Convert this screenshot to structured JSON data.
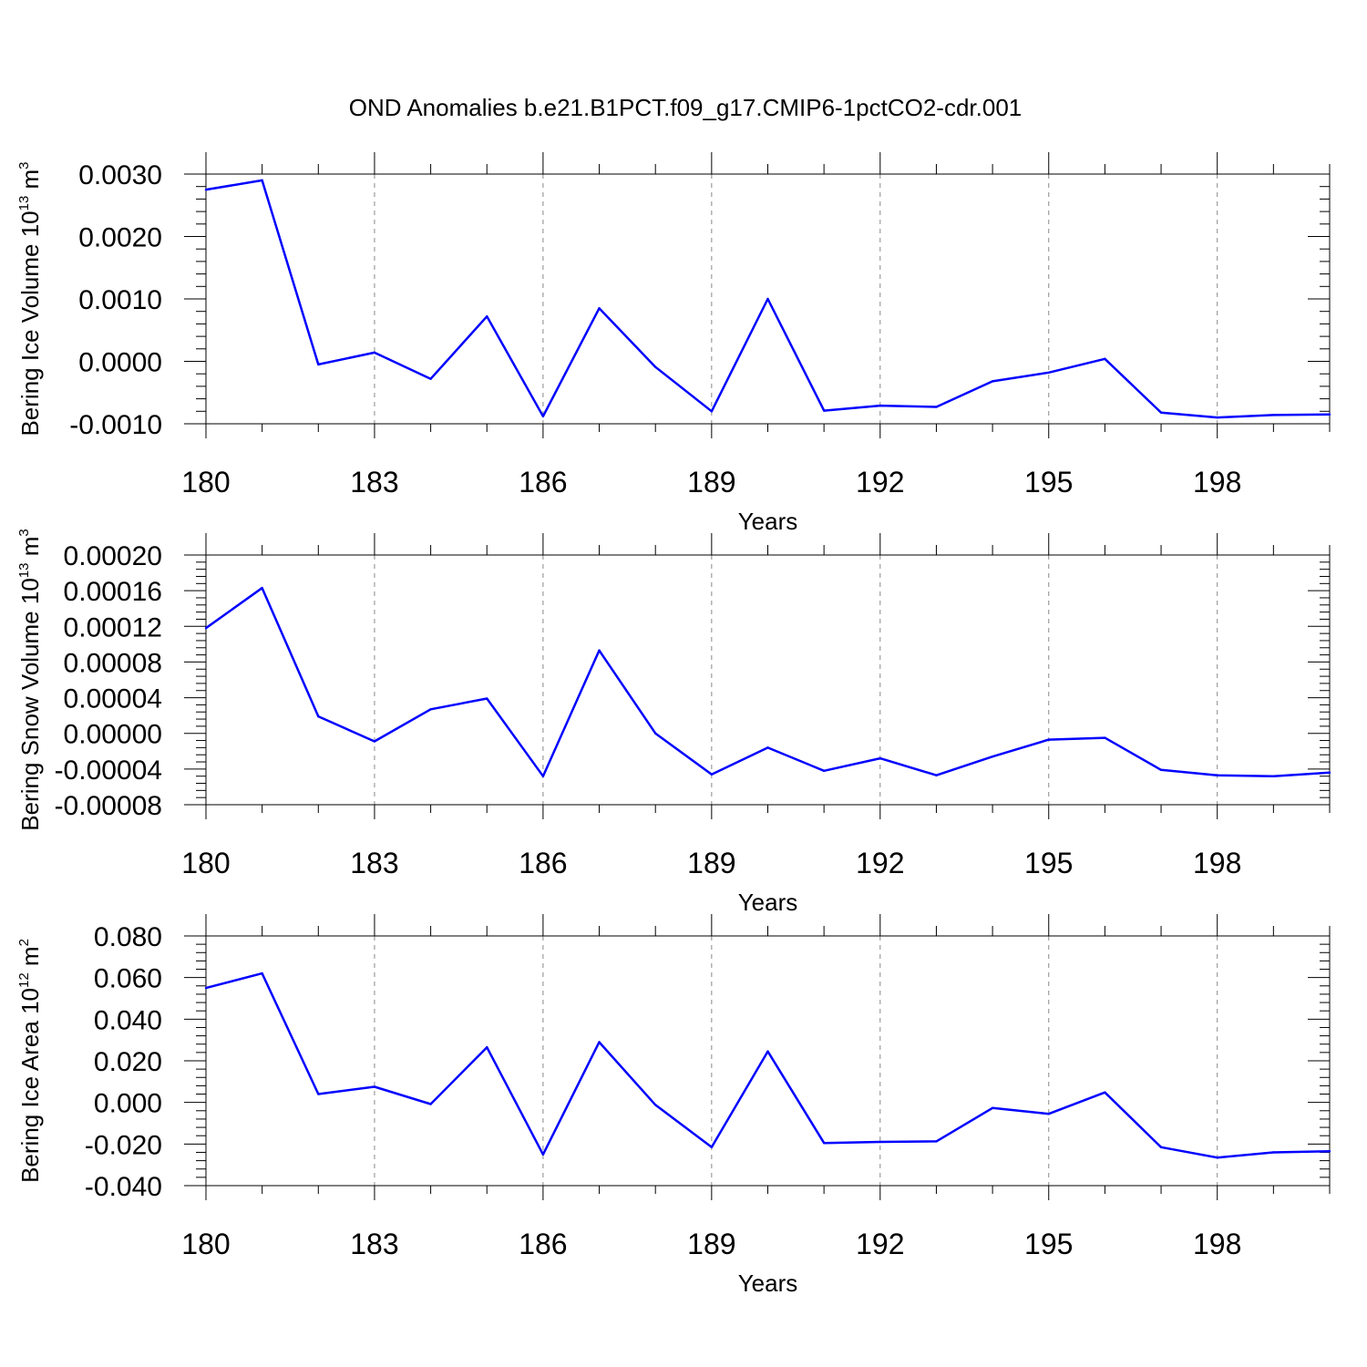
{
  "title": "OND Anomalies b.e21.B1PCT.f09_g17.CMIP6-1pctCO2-cdr.001",
  "line_color": "#0000ff",
  "chart_data": [
    {
      "type": "line",
      "ylabel": "Bering Ice Volume 10",
      "ylabel_exp": "13",
      "ylabel_unit": " m",
      "ylabel_unit_exp": "3",
      "xlabel": "Years",
      "xlim": [
        180,
        200
      ],
      "ylim": [
        -0.001,
        0.003
      ],
      "xticks": [
        180,
        183,
        186,
        189,
        192,
        195,
        198
      ],
      "xtick_labels": [
        "180",
        "183",
        "186",
        "189",
        "192",
        "195",
        "198"
      ],
      "yticks": [
        -0.001,
        0.0,
        0.001,
        0.002,
        0.003
      ],
      "ytick_labels": [
        "-0.0010",
        "0.0000",
        "0.0010",
        "0.0020",
        "0.0030"
      ],
      "grid": "vertical dashed at x ticks",
      "x": [
        180,
        181,
        182,
        183,
        184,
        185,
        186,
        187,
        188,
        189,
        190,
        191,
        192,
        193,
        194,
        195,
        196,
        197,
        198,
        199,
        200
      ],
      "series": [
        {
          "name": "Bering Ice Volume",
          "values": [
            0.00275,
            0.0029,
            -5e-05,
            0.00014,
            -0.00028,
            0.00072,
            -0.00088,
            0.00085,
            -9e-05,
            -0.0008,
            0.001,
            -0.00079,
            -0.00071,
            -0.00073,
            -0.00032,
            -0.00018,
            4e-05,
            -0.00082,
            -0.0009,
            -0.00086,
            -0.00085
          ]
        }
      ]
    },
    {
      "type": "line",
      "ylabel": "Bering Snow Volume 10",
      "ylabel_exp": "13",
      "ylabel_unit": " m",
      "ylabel_unit_exp": "3",
      "xlabel": "Years",
      "xlim": [
        180,
        200
      ],
      "ylim": [
        -8e-05,
        0.0002
      ],
      "xticks": [
        180,
        183,
        186,
        189,
        192,
        195,
        198
      ],
      "xtick_labels": [
        "180",
        "183",
        "186",
        "189",
        "192",
        "195",
        "198"
      ],
      "yticks": [
        -8e-05,
        -4e-05,
        0.0,
        4e-05,
        8e-05,
        0.00012,
        0.00016,
        0.0002
      ],
      "ytick_labels": [
        "-0.00008",
        "-0.00004",
        "0.00000",
        "0.00004",
        "0.00008",
        "0.00012",
        "0.00016",
        "0.00020"
      ],
      "grid": "vertical dashed at x ticks",
      "x": [
        180,
        181,
        182,
        183,
        184,
        185,
        186,
        187,
        188,
        189,
        190,
        191,
        192,
        193,
        194,
        195,
        196,
        197,
        198,
        199,
        200
      ],
      "series": [
        {
          "name": "Bering Snow Volume",
          "values": [
            0.000118,
            0.000163,
            1.9e-05,
            -9e-06,
            2.7e-05,
            3.9e-05,
            -4.8e-05,
            9.3e-05,
            0.0,
            -4.6e-05,
            -1.6e-05,
            -4.2e-05,
            -2.8e-05,
            -4.7e-05,
            -2.6e-05,
            -7e-06,
            -5e-06,
            -4.1e-05,
            -4.7e-05,
            -4.8e-05,
            -4.4e-05
          ]
        }
      ]
    },
    {
      "type": "line",
      "ylabel": "Bering Ice Area 10",
      "ylabel_exp": "12",
      "ylabel_unit": " m",
      "ylabel_unit_exp": "2",
      "xlabel": "Years",
      "xlim": [
        180,
        200
      ],
      "ylim": [
        -0.04,
        0.08
      ],
      "xticks": [
        180,
        183,
        186,
        189,
        192,
        195,
        198
      ],
      "xtick_labels": [
        "180",
        "183",
        "186",
        "189",
        "192",
        "195",
        "198"
      ],
      "yticks": [
        -0.04,
        -0.02,
        0.0,
        0.02,
        0.04,
        0.06,
        0.08
      ],
      "ytick_labels": [
        "-0.040",
        "-0.020",
        "0.000",
        "0.020",
        "0.040",
        "0.060",
        "0.080"
      ],
      "grid": "vertical dashed at x ticks",
      "x": [
        180,
        181,
        182,
        183,
        184,
        185,
        186,
        187,
        188,
        189,
        190,
        191,
        192,
        193,
        194,
        195,
        196,
        197,
        198,
        199,
        200
      ],
      "series": [
        {
          "name": "Bering Ice Area",
          "values": [
            0.055,
            0.062,
            0.004,
            0.0075,
            -0.0008,
            0.0265,
            -0.025,
            0.029,
            -0.0012,
            -0.0215,
            0.0245,
            -0.0195,
            -0.019,
            -0.0187,
            -0.0027,
            -0.0055,
            0.0048,
            -0.0215,
            -0.0265,
            -0.024,
            -0.0235
          ]
        }
      ]
    }
  ]
}
